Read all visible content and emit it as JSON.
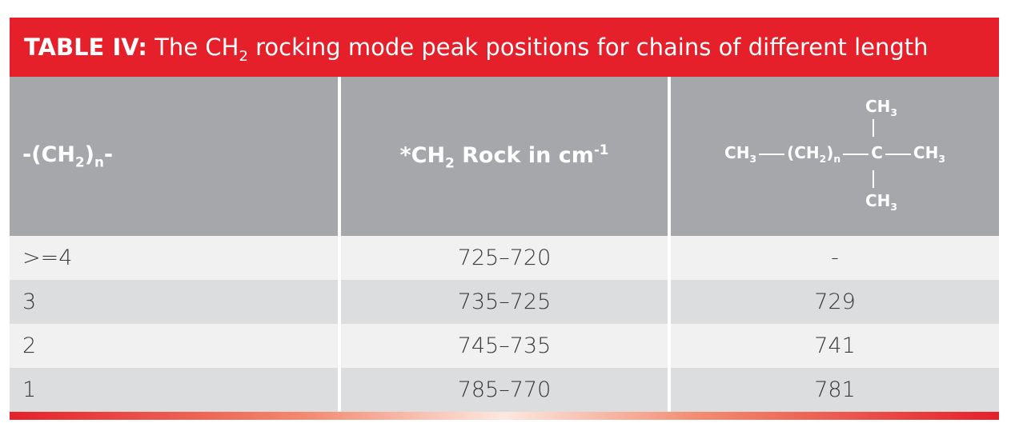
{
  "title": {
    "label": "TABLE IV:",
    "text": [
      "The CH",
      "2",
      " rocking mode peak positions for chains of different length"
    ]
  },
  "table": {
    "headers": {
      "chain": [
        "-(CH",
        "2",
        ")",
        "n",
        "-"
      ],
      "rock": [
        "*CH",
        "2",
        " Rock in cm",
        "-1"
      ],
      "formula": {
        "top": [
          "CH",
          "3"
        ],
        "middle": [
          "CH",
          "3",
          "(CH",
          "2",
          ")",
          "n",
          "C",
          "CH",
          "3"
        ],
        "bottom": [
          "CH",
          "3"
        ]
      }
    },
    "rows": [
      [
        ">=4",
        "725–720",
        "-"
      ],
      [
        "3",
        "735–725",
        "729"
      ],
      [
        "2",
        "745–735",
        "741"
      ],
      [
        "1",
        "785–770",
        "781"
      ]
    ]
  }
}
